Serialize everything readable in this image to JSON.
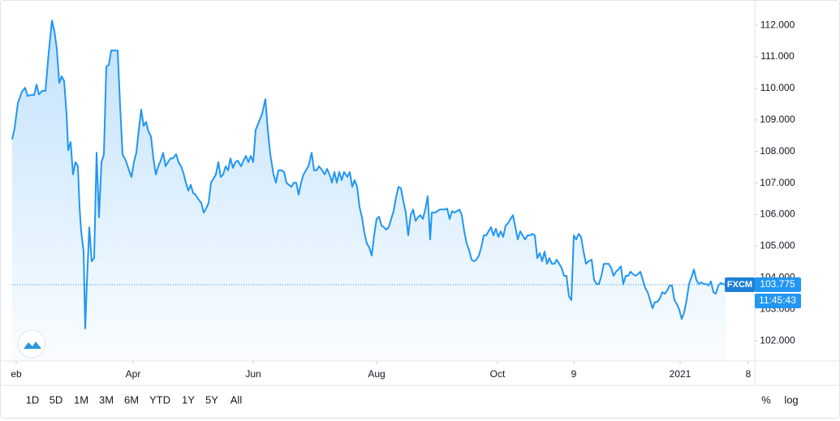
{
  "chart_data": {
    "type": "line",
    "x": [
      0,
      3,
      7,
      12,
      16,
      19,
      23,
      27,
      30,
      33,
      37,
      41,
      45,
      49,
      52,
      55,
      58,
      61,
      64,
      67,
      69,
      72,
      75,
      78,
      81,
      83,
      85,
      88,
      90,
      92,
      95,
      98,
      101,
      104,
      107,
      110,
      113,
      116,
      119,
      122,
      126,
      130,
      133,
      136,
      140,
      144,
      147,
      150,
      153,
      156,
      159,
      162,
      165,
      168,
      171,
      174,
      177,
      180,
      183,
      186,
      189,
      192,
      195,
      198,
      202,
      205,
      208,
      211,
      214,
      217,
      220,
      223,
      226,
      229,
      233,
      236,
      239,
      242,
      245,
      248,
      251,
      254,
      257,
      260,
      263,
      266,
      269,
      272,
      275,
      278,
      282,
      285,
      288,
      291,
      294,
      297,
      300,
      304,
      308,
      312,
      315,
      318,
      322,
      325,
      328,
      332,
      335,
      338,
      341,
      344,
      347,
      350,
      353,
      356,
      359,
      362,
      365,
      369,
      372,
      375,
      378,
      382,
      385,
      388,
      391,
      394,
      397,
      400,
      403,
      406,
      409,
      413,
      416,
      419,
      422,
      425,
      428,
      431,
      434,
      437,
      440,
      443,
      446,
      449,
      452,
      455,
      458,
      461,
      464,
      467,
      470,
      473,
      476,
      479,
      482,
      485,
      488,
      491,
      494,
      497,
      500,
      503,
      506,
      509,
      512,
      515,
      517,
      521,
      524,
      527,
      530,
      533,
      536,
      539,
      542,
      545,
      548,
      551,
      554,
      557,
      560,
      563,
      566,
      569,
      572,
      575,
      578,
      581,
      584,
      587,
      590,
      593,
      596,
      599,
      602,
      605,
      608,
      611,
      614,
      617,
      620,
      623,
      626,
      629,
      632,
      635,
      638,
      641,
      644,
      647,
      650,
      653,
      656,
      659,
      662,
      665,
      668,
      671,
      674,
      677,
      680,
      683,
      686,
      689,
      692,
      695,
      698,
      701,
      704,
      707,
      710,
      714,
      717,
      720,
      723,
      726,
      729,
      732,
      735,
      738,
      741,
      744,
      747,
      750,
      753,
      756,
      759,
      762,
      765,
      768,
      771,
      774,
      777,
      780,
      783,
      786,
      789,
      792,
      795,
      798,
      801,
      804,
      807,
      810,
      813,
      816,
      819,
      822,
      825,
      828,
      831,
      834,
      837,
      840,
      843,
      846,
      849,
      852,
      855,
      858,
      861,
      864,
      867,
      870,
      873,
      876,
      879
    ],
    "series": [
      {
        "name": "FXCM",
        "color": "#2196f3",
        "values": [
          108.38,
          108.74,
          109.53,
          109.89,
          110.02,
          109.76,
          109.79,
          109.79,
          110.12,
          109.81,
          109.92,
          109.92,
          111.13,
          112.15,
          111.82,
          111.25,
          110.17,
          110.38,
          110.23,
          109.2,
          108.04,
          108.3,
          107.27,
          107.66,
          107.53,
          106.24,
          105.47,
          104.83,
          102.39,
          103.8,
          105.6,
          104.52,
          104.62,
          107.96,
          105.91,
          107.66,
          107.91,
          110.69,
          110.74,
          111.2,
          111.2,
          111.2,
          109.45,
          107.91,
          107.71,
          107.4,
          107.19,
          107.66,
          107.96,
          108.68,
          109.33,
          108.81,
          108.94,
          108.63,
          108.48,
          107.78,
          107.27,
          107.53,
          107.71,
          107.96,
          107.53,
          107.66,
          107.78,
          107.78,
          107.91,
          107.66,
          107.53,
          107.32,
          107.01,
          106.76,
          106.94,
          106.68,
          106.63,
          106.5,
          106.37,
          106.06,
          106.19,
          106.37,
          107.01,
          107.14,
          107.27,
          107.66,
          107.19,
          107.27,
          107.53,
          107.4,
          107.78,
          107.48,
          107.66,
          107.71,
          107.53,
          107.71,
          107.86,
          107.66,
          107.86,
          107.66,
          108.68,
          108.94,
          109.2,
          109.66,
          108.68,
          107.91,
          107.27,
          107.01,
          107.4,
          107.4,
          107.35,
          107.01,
          106.94,
          106.88,
          107.01,
          107.01,
          106.63,
          107.01,
          107.27,
          107.4,
          107.53,
          107.96,
          107.4,
          107.4,
          107.53,
          107.4,
          107.27,
          107.45,
          107.27,
          107.01,
          107.35,
          107.01,
          107.35,
          107.09,
          107.35,
          107.19,
          107.35,
          106.88,
          107.09,
          106.88,
          106.24,
          105.91,
          105.42,
          105.08,
          104.96,
          104.7,
          105.34,
          105.86,
          105.93,
          105.65,
          105.6,
          105.52,
          105.6,
          105.86,
          106.11,
          106.55,
          106.88,
          106.83,
          106.42,
          106.06,
          105.34,
          105.98,
          106.16,
          105.8,
          105.91,
          105.98,
          105.86,
          106.16,
          106.58,
          105.21,
          106.06,
          106.06,
          106.11,
          106.16,
          106.16,
          106.16,
          106.19,
          105.86,
          106.11,
          106.06,
          106.11,
          106.16,
          105.98,
          105.47,
          105.08,
          104.88,
          104.57,
          104.52,
          104.57,
          104.7,
          104.96,
          105.34,
          105.34,
          105.47,
          105.6,
          105.34,
          105.55,
          105.29,
          105.47,
          105.29,
          105.65,
          105.73,
          105.86,
          105.98,
          105.6,
          105.21,
          105.47,
          105.34,
          105.21,
          105.34,
          105.34,
          105.39,
          105.34,
          104.62,
          104.78,
          104.52,
          104.83,
          104.44,
          104.62,
          104.44,
          104.44,
          104.57,
          104.44,
          104.31,
          104.06,
          104.06,
          103.41,
          103.29,
          105.34,
          105.21,
          105.39,
          105.29,
          104.83,
          104.44,
          104.52,
          104.57,
          103.93,
          103.8,
          103.8,
          104.06,
          104.44,
          104.44,
          104.44,
          104.31,
          104.06,
          104.19,
          104.26,
          104.36,
          103.8,
          104.06,
          104.06,
          104.19,
          104.11,
          104.06,
          104.11,
          104.19,
          103.93,
          103.67,
          103.54,
          103.29,
          103.03,
          103.23,
          103.23,
          103.34,
          103.54,
          103.49,
          103.59,
          103.75,
          103.75,
          103.29,
          103.16,
          102.98,
          102.69,
          102.9,
          103.29,
          103.8,
          104.01,
          104.26,
          103.93,
          103.8,
          103.85,
          103.8,
          103.8,
          103.75,
          103.88,
          103.54,
          103.49,
          103.75,
          103.83,
          103.8,
          103.775
        ]
      }
    ],
    "xlim": [
      0,
      915
    ],
    "ylim": [
      101.36,
      112.8
    ],
    "xticks": [
      {
        "value": 5,
        "label": "eb"
      },
      {
        "value": 149,
        "label": "Apr"
      },
      {
        "value": 297,
        "label": "Jun"
      },
      {
        "value": 449,
        "label": "Aug"
      },
      {
        "value": 598,
        "label": "Oct"
      },
      {
        "value": 692,
        "label": "9"
      },
      {
        "value": 823,
        "label": "2021"
      },
      {
        "value": 907,
        "label": "8"
      }
    ],
    "yticks": [
      {
        "value": 102,
        "label": "102.000"
      },
      {
        "value": 103,
        "label": "103.000"
      },
      {
        "value": 104,
        "label": "104.000"
      },
      {
        "value": 105,
        "label": "105.000"
      },
      {
        "value": 106,
        "label": "106.000"
      },
      {
        "value": 107,
        "label": "107.000"
      },
      {
        "value": 108,
        "label": "108.000"
      },
      {
        "value": 109,
        "label": "109.000"
      },
      {
        "value": 110,
        "label": "110.000"
      },
      {
        "value": 111,
        "label": "111.000"
      },
      {
        "value": 112,
        "label": "112.000"
      }
    ],
    "last_price": 103.775,
    "last_time": "11:45:43",
    "range_buttons": [
      "1D",
      "5D",
      "1M",
      "3M",
      "6M",
      "YTD",
      "1Y",
      "5Y",
      "All"
    ],
    "scale_buttons": [
      "%",
      "log"
    ]
  }
}
